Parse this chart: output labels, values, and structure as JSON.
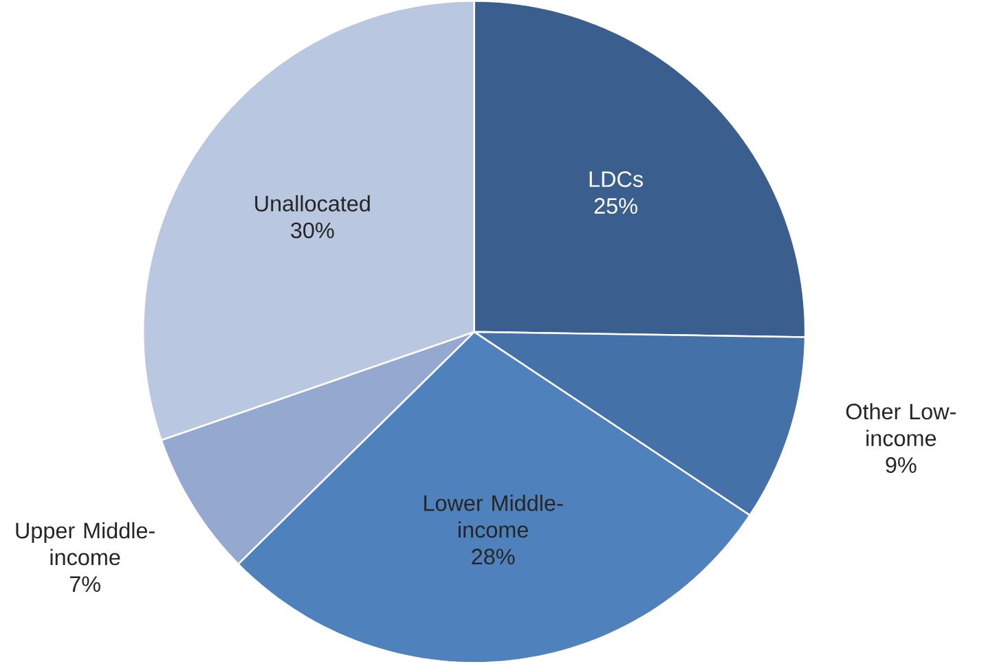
{
  "chart_data": {
    "type": "pie",
    "categories": [
      "LDCs",
      "Other Low-income",
      "Lower Middle-income",
      "Upper Middle-income",
      "Unallocated"
    ],
    "values": [
      25,
      9,
      28,
      7,
      30
    ],
    "value_labels": [
      "25%",
      "9%",
      "28%",
      "7%",
      "30%"
    ],
    "colors": [
      "#3a5f8f",
      "#4472a8",
      "#4f81bd",
      "#95a9d0",
      "#b9c7e0"
    ]
  }
}
